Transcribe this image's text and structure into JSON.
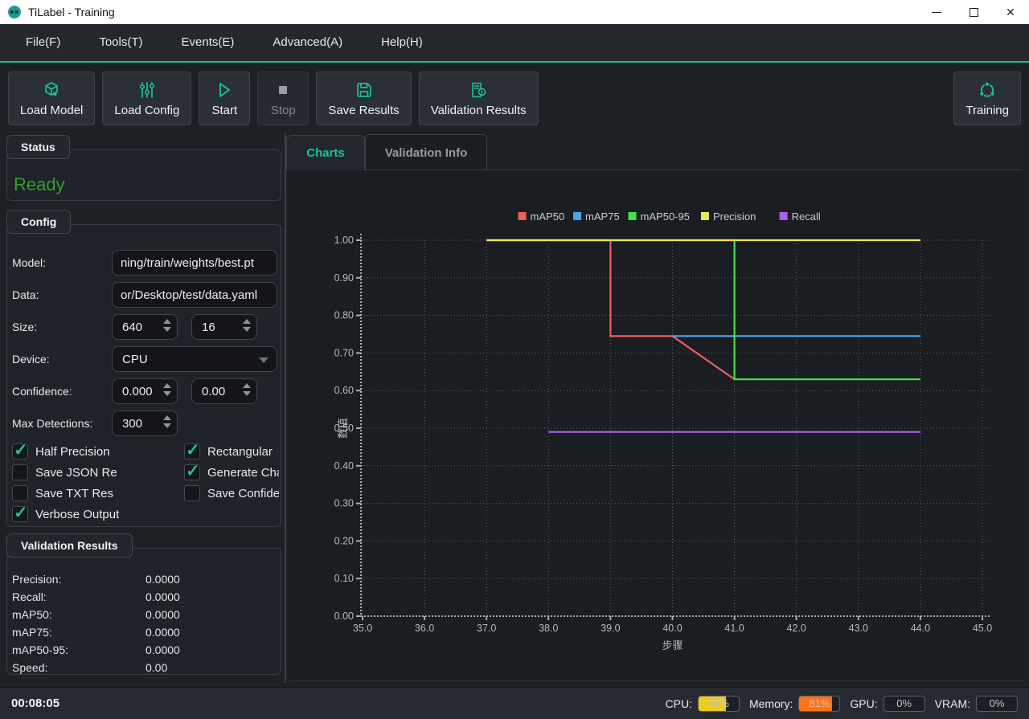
{
  "window": {
    "title": "TiLabel - Training"
  },
  "menu": {
    "items": [
      "File(F)",
      "Tools(T)",
      "Events(E)",
      "Advanced(A)",
      "Help(H)"
    ]
  },
  "toolbar": {
    "buttons": [
      {
        "label": "Load Model",
        "icon": "cube-download-icon",
        "enabled": true
      },
      {
        "label": "Load Config",
        "icon": "sliders-icon",
        "enabled": true
      },
      {
        "label": "Start",
        "icon": "play-icon",
        "enabled": true
      },
      {
        "label": "Stop",
        "icon": "stop-icon",
        "enabled": false
      },
      {
        "label": "Save Results",
        "icon": "save-icon",
        "enabled": true
      },
      {
        "label": "Validation Results",
        "icon": "document-pin-icon",
        "enabled": true
      }
    ],
    "training_button": {
      "label": "Training",
      "icon": "cycle-icon"
    }
  },
  "status_panel": {
    "title": "Status",
    "value": "Ready",
    "color": "#2aa52a"
  },
  "config_panel": {
    "title": "Config",
    "fields": {
      "model": {
        "label": "Model:",
        "value": "ning/train/weights/best.pt"
      },
      "data": {
        "label": "Data:",
        "value": "or/Desktop/test/data.yaml"
      },
      "size": {
        "label": "Size:",
        "value1": "640",
        "value2": "16"
      },
      "device": {
        "label": "Device:",
        "value": "CPU"
      },
      "confidence": {
        "label": "Confidence:",
        "value1": "0.000",
        "value2": "0.00"
      },
      "max_detections": {
        "label": "Max Detections:",
        "value": "300"
      }
    },
    "checkboxes": [
      {
        "label": "Half Precision",
        "checked": true
      },
      {
        "label": "Save JSON Re",
        "checked": false
      },
      {
        "label": "Save TXT Res",
        "checked": false
      },
      {
        "label": "Verbose Output",
        "checked": true
      },
      {
        "label": "Rectangular",
        "checked": true
      },
      {
        "label": "Generate Cha",
        "checked": true
      },
      {
        "label": "Save Confide",
        "checked": false
      }
    ]
  },
  "validation_panel": {
    "title": "Validation Results",
    "rows": [
      {
        "label": "Precision:",
        "value": "0.0000"
      },
      {
        "label": "Recall:",
        "value": "0.0000"
      },
      {
        "label": "mAP50:",
        "value": "0.0000"
      },
      {
        "label": "mAP75:",
        "value": "0.0000"
      },
      {
        "label": "mAP50-95:",
        "value": "0.0000"
      },
      {
        "label": "Speed:",
        "value": "0.00"
      }
    ]
  },
  "tabs": [
    {
      "label": "Charts",
      "active": true
    },
    {
      "label": "Validation Info",
      "active": false
    }
  ],
  "chart_data": {
    "type": "line",
    "xlabel": "步骤",
    "ylabel": "数值",
    "xlim": [
      35,
      45
    ],
    "ylim": [
      0.0,
      1.0
    ],
    "grid": true,
    "legend_position": "top-center",
    "xticks": [
      35,
      36,
      37,
      38,
      39,
      40,
      41,
      42,
      43,
      44,
      45
    ],
    "xtick_labels": [
      "35.0",
      "36.0",
      "37.0",
      "38.0",
      "39.0",
      "40.0",
      "41.0",
      "42.0",
      "43.0",
      "44.0",
      "45.0"
    ],
    "yticks": [
      0.0,
      0.1,
      0.2,
      0.3,
      0.4,
      0.5,
      0.6,
      0.7,
      0.8,
      0.9,
      1.0
    ],
    "ytick_labels": [
      "0.00",
      "0.10",
      "0.20",
      "0.30",
      "0.40",
      "0.50",
      "0.60",
      "0.70",
      "0.80",
      "0.90",
      "1.00"
    ],
    "series": [
      {
        "name": "mAP50",
        "color": "#f15c5c",
        "x": [
          37,
          38,
          39,
          39,
          40,
          41
        ],
        "y": [
          1.0,
          1.0,
          1.0,
          0.745,
          0.745,
          0.63
        ]
      },
      {
        "name": "mAP75",
        "color": "#4da3e8",
        "x": [
          40,
          41,
          42,
          43,
          44
        ],
        "y": [
          0.745,
          0.745,
          0.745,
          0.745,
          0.745
        ]
      },
      {
        "name": "mAP50-95",
        "color": "#47e147",
        "x": [
          37,
          38,
          39,
          40,
          41,
          41,
          42,
          43,
          44
        ],
        "y": [
          1.0,
          1.0,
          1.0,
          1.0,
          1.0,
          0.63,
          0.63,
          0.63,
          0.63
        ]
      },
      {
        "name": "Precision",
        "color": "#e9e951",
        "x": [
          37,
          38,
          39,
          40,
          41,
          42,
          43,
          44
        ],
        "y": [
          1.0,
          1.0,
          1.0,
          1.0,
          1.0,
          1.0,
          1.0,
          1.0
        ]
      },
      {
        "name": "Recall",
        "color": "#b05ef2",
        "x": [
          38,
          39,
          40,
          41,
          42,
          43,
          44
        ],
        "y": [
          0.49,
          0.49,
          0.49,
          0.49,
          0.49,
          0.49,
          0.49
        ]
      }
    ]
  },
  "statusbar": {
    "timer": "00:08:05",
    "meters": [
      {
        "label": "CPU:",
        "value": "69%",
        "fill": 0.69,
        "color": "#eccb1d"
      },
      {
        "label": "Memory:",
        "value": "81%",
        "fill": 0.81,
        "color": "#ff7315"
      },
      {
        "label": "GPU:",
        "value": "0%",
        "fill": 0.0,
        "color": "#eccb1d"
      },
      {
        "label": "VRAM:",
        "value": "0%",
        "fill": 0.0,
        "color": "#eccb1d"
      }
    ]
  }
}
